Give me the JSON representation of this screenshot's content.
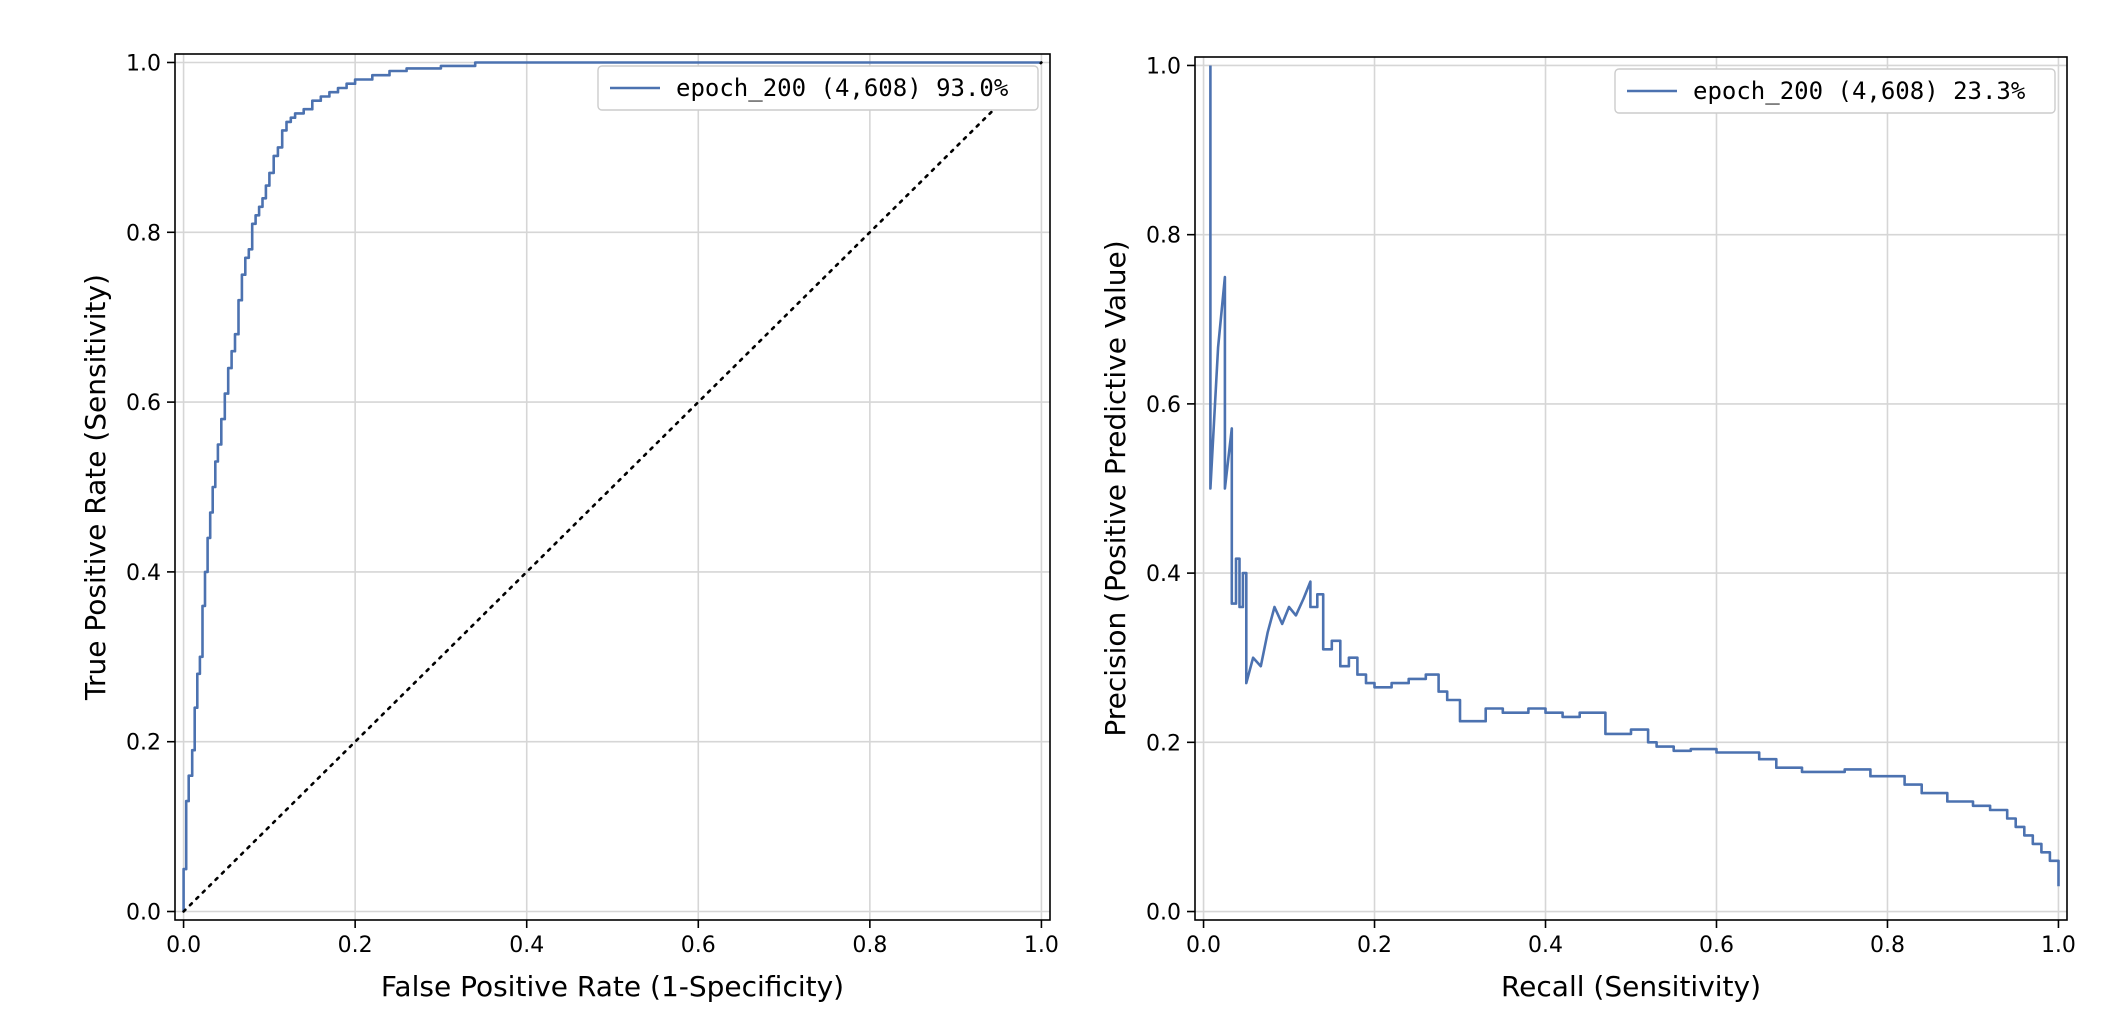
{
  "chart_data": [
    {
      "type": "line",
      "xlabel": "False Positive Rate (1-Specificity)",
      "ylabel": "True Positive Rate (Sensitivity)",
      "xlim": [
        -0.01,
        1.01
      ],
      "ylim": [
        -0.01,
        1.01
      ],
      "xticks": [
        0.0,
        0.2,
        0.4,
        0.6,
        0.8,
        1.0
      ],
      "yticks": [
        0.0,
        0.2,
        0.4,
        0.6,
        0.8,
        1.0
      ],
      "tick_labels": [
        "0.0",
        "0.2",
        "0.4",
        "0.6",
        "0.8",
        "1.0"
      ],
      "grid": true,
      "legend_position": "top-right",
      "series": [
        {
          "name": "epoch_200 (4,608) 93.0%",
          "color": "#4c72b0",
          "style": "solid",
          "x": [
            0.0,
            0.0,
            0.003,
            0.003,
            0.006,
            0.006,
            0.01,
            0.01,
            0.013,
            0.013,
            0.016,
            0.016,
            0.019,
            0.019,
            0.022,
            0.022,
            0.025,
            0.025,
            0.028,
            0.028,
            0.031,
            0.031,
            0.034,
            0.034,
            0.037,
            0.037,
            0.04,
            0.04,
            0.044,
            0.044,
            0.048,
            0.048,
            0.052,
            0.052,
            0.056,
            0.056,
            0.06,
            0.06,
            0.064,
            0.064,
            0.068,
            0.068,
            0.072,
            0.072,
            0.076,
            0.076,
            0.08,
            0.08,
            0.084,
            0.084,
            0.088,
            0.088,
            0.092,
            0.092,
            0.096,
            0.096,
            0.1,
            0.1,
            0.105,
            0.105,
            0.11,
            0.11,
            0.115,
            0.115,
            0.12,
            0.12,
            0.125,
            0.125,
            0.13,
            0.13,
            0.14,
            0.14,
            0.15,
            0.15,
            0.16,
            0.16,
            0.17,
            0.17,
            0.18,
            0.18,
            0.19,
            0.19,
            0.2,
            0.2,
            0.22,
            0.22,
            0.24,
            0.24,
            0.26,
            0.26,
            0.3,
            0.3,
            0.34,
            0.34,
            0.37,
            0.37,
            0.4,
            0.4,
            0.42,
            0.42,
            1.0
          ],
          "y": [
            0.0,
            0.05,
            0.05,
            0.13,
            0.13,
            0.16,
            0.16,
            0.19,
            0.19,
            0.24,
            0.24,
            0.28,
            0.28,
            0.3,
            0.3,
            0.36,
            0.36,
            0.4,
            0.4,
            0.44,
            0.44,
            0.47,
            0.47,
            0.5,
            0.5,
            0.53,
            0.53,
            0.55,
            0.55,
            0.58,
            0.58,
            0.61,
            0.61,
            0.64,
            0.64,
            0.66,
            0.66,
            0.68,
            0.68,
            0.72,
            0.72,
            0.75,
            0.75,
            0.77,
            0.77,
            0.78,
            0.78,
            0.81,
            0.81,
            0.82,
            0.82,
            0.83,
            0.83,
            0.84,
            0.84,
            0.855,
            0.855,
            0.87,
            0.87,
            0.89,
            0.89,
            0.9,
            0.9,
            0.92,
            0.92,
            0.93,
            0.93,
            0.935,
            0.935,
            0.94,
            0.94,
            0.945,
            0.945,
            0.955,
            0.955,
            0.96,
            0.96,
            0.965,
            0.965,
            0.97,
            0.97,
            0.975,
            0.975,
            0.98,
            0.98,
            0.985,
            0.985,
            0.99,
            0.99,
            0.993,
            0.993,
            0.996,
            0.996,
            1.0,
            1.0,
            1.0,
            1.0,
            1.0,
            1.0,
            1.0,
            1.0
          ]
        },
        {
          "color": "#000000",
          "style": "dotted",
          "x": [
            0.0,
            1.0
          ],
          "y": [
            0.0,
            1.0
          ]
        }
      ]
    },
    {
      "type": "line",
      "xlabel": "Recall (Sensitivity)",
      "ylabel": "Precision (Positive Predictive Value)",
      "xlim": [
        -0.01,
        1.01
      ],
      "ylim": [
        -0.01,
        1.01
      ],
      "xticks": [
        0.0,
        0.2,
        0.4,
        0.6,
        0.8,
        1.0
      ],
      "yticks": [
        0.0,
        0.2,
        0.4,
        0.6,
        0.8,
        1.0
      ],
      "tick_labels": [
        "0.0",
        "0.2",
        "0.4",
        "0.6",
        "0.8",
        "1.0"
      ],
      "grid": true,
      "legend_position": "top-right",
      "series": [
        {
          "name": "epoch_200 (4,608) 23.3%",
          "color": "#4c72b0",
          "style": "solid",
          "x": [
            0.008,
            0.008,
            0.008,
            0.017,
            0.025,
            0.025,
            0.025,
            0.033,
            0.033,
            0.033,
            0.038,
            0.038,
            0.042,
            0.042,
            0.046,
            0.046,
            0.05,
            0.05,
            0.058,
            0.067,
            0.075,
            0.083,
            0.092,
            0.1,
            0.108,
            0.117,
            0.125,
            0.125,
            0.133,
            0.133,
            0.14,
            0.14,
            0.15,
            0.15,
            0.16,
            0.16,
            0.17,
            0.17,
            0.18,
            0.18,
            0.19,
            0.19,
            0.2,
            0.2,
            0.22,
            0.22,
            0.24,
            0.24,
            0.26,
            0.26,
            0.275,
            0.275,
            0.285,
            0.285,
            0.3,
            0.3,
            0.33,
            0.33,
            0.35,
            0.35,
            0.38,
            0.38,
            0.4,
            0.4,
            0.42,
            0.42,
            0.44,
            0.44,
            0.47,
            0.47,
            0.5,
            0.5,
            0.52,
            0.52,
            0.53,
            0.53,
            0.55,
            0.55,
            0.57,
            0.57,
            0.6,
            0.6,
            0.65,
            0.65,
            0.67,
            0.67,
            0.7,
            0.7,
            0.75,
            0.75,
            0.78,
            0.78,
            0.82,
            0.82,
            0.84,
            0.84,
            0.87,
            0.87,
            0.9,
            0.9,
            0.92,
            0.92,
            0.94,
            0.94,
            0.95,
            0.95,
            0.96,
            0.96,
            0.97,
            0.97,
            0.98,
            0.98,
            0.99,
            0.99,
            1.0,
            1.0
          ],
          "y": [
            1.0,
            0.5,
            0.5,
            0.667,
            0.75,
            0.5,
            0.5,
            0.571,
            0.571,
            0.364,
            0.364,
            0.417,
            0.417,
            0.36,
            0.36,
            0.4,
            0.4,
            0.27,
            0.3,
            0.29,
            0.33,
            0.36,
            0.34,
            0.36,
            0.35,
            0.37,
            0.39,
            0.36,
            0.36,
            0.375,
            0.375,
            0.31,
            0.31,
            0.32,
            0.32,
            0.29,
            0.29,
            0.3,
            0.3,
            0.28,
            0.28,
            0.27,
            0.27,
            0.265,
            0.265,
            0.27,
            0.27,
            0.275,
            0.275,
            0.28,
            0.28,
            0.26,
            0.26,
            0.25,
            0.25,
            0.225,
            0.225,
            0.24,
            0.24,
            0.235,
            0.235,
            0.24,
            0.24,
            0.235,
            0.235,
            0.23,
            0.23,
            0.235,
            0.235,
            0.21,
            0.21,
            0.215,
            0.215,
            0.2,
            0.2,
            0.195,
            0.195,
            0.19,
            0.19,
            0.192,
            0.192,
            0.188,
            0.188,
            0.18,
            0.18,
            0.17,
            0.17,
            0.165,
            0.165,
            0.168,
            0.168,
            0.16,
            0.16,
            0.15,
            0.15,
            0.14,
            0.14,
            0.13,
            0.13,
            0.125,
            0.125,
            0.12,
            0.12,
            0.11,
            0.11,
            0.1,
            0.1,
            0.09,
            0.09,
            0.08,
            0.08,
            0.07,
            0.07,
            0.06,
            0.06,
            0.03
          ]
        }
      ]
    }
  ]
}
